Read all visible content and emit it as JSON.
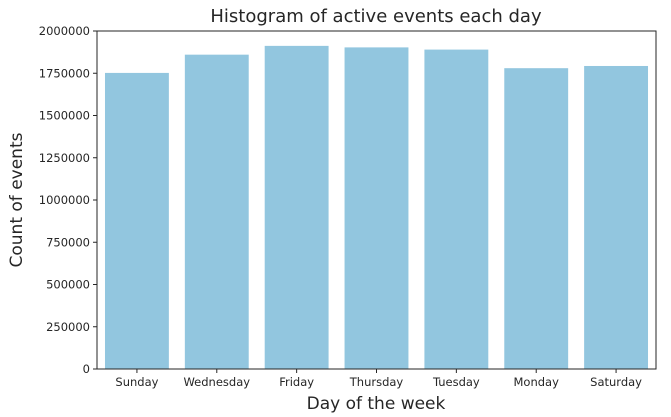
{
  "chart_data": {
    "type": "bar",
    "title": "Histogram of active events each day",
    "xlabel": "Day of the week",
    "ylabel": "Count of events",
    "categories": [
      "Sunday",
      "Wednesday",
      "Friday",
      "Thursday",
      "Tuesday",
      "Monday",
      "Saturday"
    ],
    "values": [
      1752000,
      1860000,
      1912000,
      1903000,
      1890000,
      1780000,
      1793000
    ],
    "ylim": [
      0,
      2000000
    ],
    "yticks": [
      0,
      250000,
      500000,
      750000,
      1000000,
      1250000,
      1500000,
      1750000,
      2000000
    ],
    "ytick_labels": [
      "0",
      "250000",
      "500000",
      "750000",
      "1000000",
      "1250000",
      "1500000",
      "1750000",
      "2000000"
    ],
    "bar_color": "#92c6df",
    "grid": false,
    "legend": false
  }
}
